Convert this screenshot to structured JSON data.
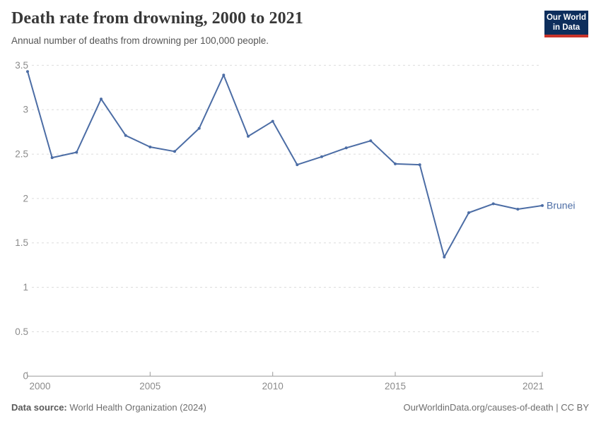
{
  "header": {
    "title": "Death rate from drowning, 2000 to 2021",
    "subtitle": "Annual number of deaths from drowning per 100,000 people.",
    "logo_line1": "Our World",
    "logo_line2": "in Data"
  },
  "chart_data": {
    "type": "line",
    "title": "Death rate from drowning, 2000 to 2021",
    "xlabel": "",
    "ylabel": "Annual number of deaths from drowning per 100,000 people",
    "x": [
      2000,
      2001,
      2002,
      2003,
      2004,
      2005,
      2006,
      2007,
      2008,
      2009,
      2010,
      2011,
      2012,
      2013,
      2014,
      2015,
      2016,
      2017,
      2018,
      2019,
      2020,
      2021
    ],
    "series": [
      {
        "name": "Brunei",
        "color": "#4c6da5",
        "values": [
          3.43,
          2.46,
          2.52,
          3.12,
          2.71,
          2.58,
          2.53,
          2.79,
          3.39,
          2.7,
          2.87,
          2.38,
          2.47,
          2.57,
          2.65,
          2.39,
          2.38,
          1.34,
          1.84,
          1.94,
          1.88,
          1.92
        ]
      }
    ],
    "x_ticks": [
      2000,
      2005,
      2010,
      2015,
      2021
    ],
    "y_ticks": [
      "0",
      "0.5",
      "1",
      "1.5",
      "2",
      "2.5",
      "3",
      "3.5"
    ],
    "xlim": [
      2000,
      2021
    ],
    "ylim": [
      0,
      3.5
    ],
    "grid": "horizontal-dashed",
    "legend_position": "end-of-line"
  },
  "footer": {
    "datasource_label": "Data source:",
    "datasource_value": "World Health Organization (2024)",
    "attribution": "OurWorldinData.org/causes-of-death | CC BY"
  },
  "colors": {
    "line": "#4c6da5",
    "grid": "#dcdcdc",
    "axis": "#9a9a9a",
    "tick_text": "#8b8b8b",
    "title": "#383838",
    "subtitle": "#565656",
    "logo_bg": "#0d2e5c",
    "logo_red": "#c9342a"
  }
}
